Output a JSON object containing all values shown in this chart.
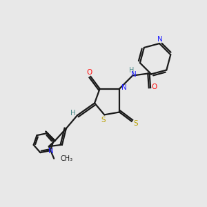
{
  "bg_color": "#e8e8e8",
  "bond_color": "#1a1a1a",
  "N_color": "#2020ff",
  "O_color": "#ff1010",
  "S_color": "#b8a000",
  "H_color": "#4a8a8a",
  "figsize": [
    3.0,
    3.0
  ],
  "dpi": 100,
  "xlim": [
    0,
    10
  ],
  "ylim": [
    0,
    10
  ]
}
